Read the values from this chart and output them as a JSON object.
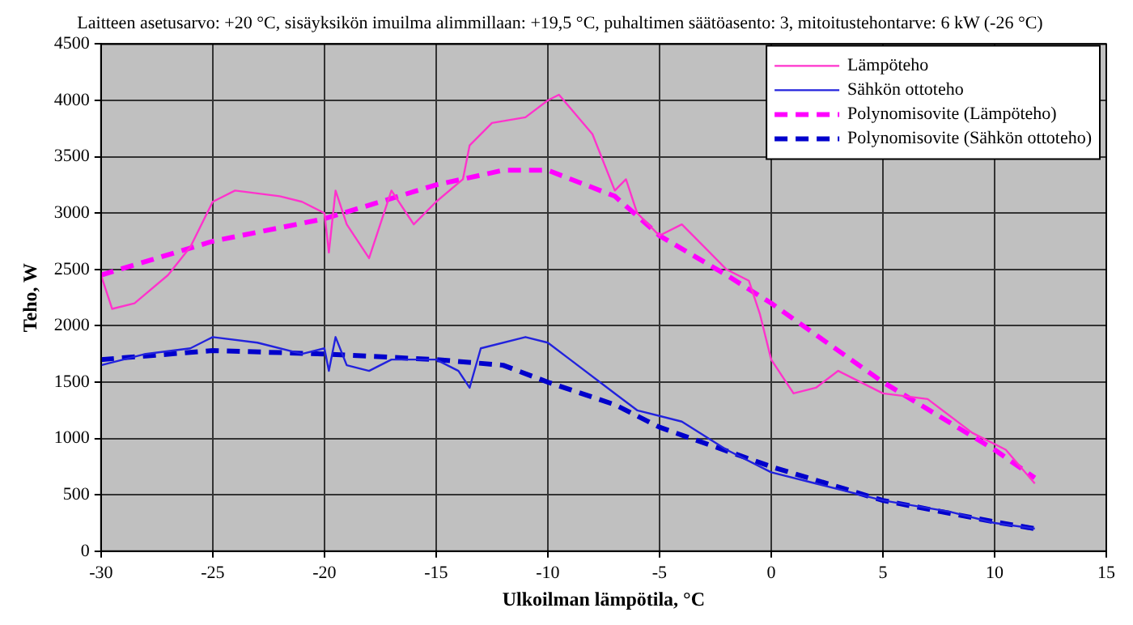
{
  "chart_data": {
    "type": "line",
    "title": "Laitteen asetusarvo: +20 °C, sisäyksikön imuilma alimmillaan: +19,5 °C, puhaltimen säätöasento: 3, mitoitustehontarve: 6 kW (-26 °C)",
    "xlabel": "Ulkoilman lämpötila, °C",
    "ylabel": "Teho, W",
    "xlim": [
      -30,
      15
    ],
    "xticks": [
      -30,
      -25,
      -20,
      -15,
      -10,
      -5,
      0,
      5,
      10,
      15
    ],
    "ylim": [
      0,
      4500
    ],
    "yticks": [
      0,
      500,
      1000,
      1500,
      2000,
      2500,
      3000,
      3500,
      4000,
      4500
    ],
    "grid": true,
    "legend": "top right",
    "marker": "none",
    "series": [
      {
        "name": "Lämpöteho",
        "color": "#ff33cc",
        "line_style": "solid",
        "x": [
          -30,
          -29.5,
          -28.5,
          -27,
          -26,
          -25,
          -24,
          -22,
          -21,
          -20,
          -19.8,
          -19.5,
          -19,
          -18,
          -17,
          -16,
          -15,
          -13.8,
          -13.5,
          -12.5,
          -11,
          -10,
          -9.5,
          -8,
          -7,
          -6.5,
          -6,
          -5,
          -4,
          -3,
          -2,
          -1,
          -0.5,
          0,
          1,
          2,
          3,
          5,
          7,
          9,
          10.5,
          11.8
        ],
        "values": [
          2450,
          2150,
          2200,
          2450,
          2700,
          3100,
          3200,
          3150,
          3100,
          3000,
          2650,
          3200,
          2900,
          2600,
          3200,
          2900,
          3100,
          3300,
          3600,
          3800,
          3850,
          4000,
          4050,
          3700,
          3200,
          3300,
          3000,
          2800,
          2900,
          2700,
          2500,
          2400,
          2100,
          1700,
          1400,
          1450,
          1600,
          1400,
          1350,
          1050,
          900,
          600
        ]
      },
      {
        "name": "Sähkön ottoteho",
        "color": "#2222dd",
        "line_style": "solid",
        "x": [
          -30,
          -28,
          -26,
          -25,
          -23,
          -21,
          -20,
          -19.8,
          -19.5,
          -19,
          -18,
          -17,
          -16,
          -15,
          -14,
          -13.5,
          -13,
          -11,
          -10,
          -9,
          -7,
          -6,
          -4,
          -2,
          0,
          2,
          5,
          8,
          10,
          11.8
        ],
        "values": [
          1650,
          1750,
          1800,
          1900,
          1850,
          1750,
          1800,
          1600,
          1900,
          1650,
          1600,
          1700,
          1700,
          1700,
          1600,
          1450,
          1800,
          1900,
          1850,
          1700,
          1400,
          1250,
          1150,
          900,
          700,
          600,
          450,
          350,
          250,
          200
        ]
      },
      {
        "name": "Polynomisovite (Lämpöteho)",
        "color": "#ff00ff",
        "line_style": "dashed",
        "x": [
          -30,
          -25,
          -20,
          -15,
          -12,
          -10,
          -7,
          -5,
          -2,
          0,
          5,
          10,
          11.8
        ],
        "values": [
          2450,
          2750,
          2950,
          3250,
          3380,
          3380,
          3150,
          2800,
          2450,
          2200,
          1500,
          900,
          650
        ]
      },
      {
        "name": "Polynomisovite (Sähkön ottoteho)",
        "color": "#0000cc",
        "line_style": "dashed",
        "x": [
          -30,
          -25,
          -20,
          -15,
          -12,
          -10,
          -7,
          -5,
          0,
          5,
          10,
          11.8
        ],
        "values": [
          1700,
          1780,
          1750,
          1700,
          1650,
          1500,
          1300,
          1100,
          750,
          450,
          260,
          200
        ]
      }
    ]
  }
}
